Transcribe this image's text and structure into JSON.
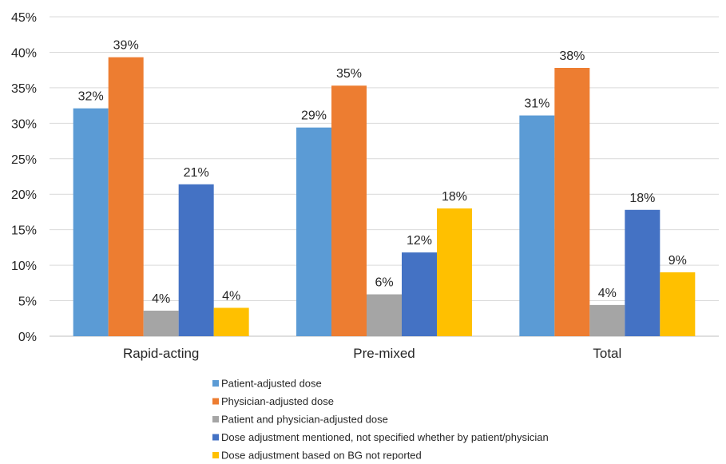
{
  "chart_data": {
    "type": "bar",
    "title": "",
    "xlabel": "",
    "ylabel": "",
    "categories": [
      "Rapid-acting",
      "Pre-mixed",
      "Total"
    ],
    "ylim": [
      0,
      45
    ],
    "yticks": [
      0,
      5,
      10,
      15,
      20,
      25,
      30,
      35,
      40,
      45
    ],
    "y_tick_suffix": "%",
    "grid": true,
    "legend_position": "bottom",
    "series": [
      {
        "name": "Patient-adjusted dose",
        "color": "#5B9BD5",
        "values": [
          32.1,
          29.4,
          31.1
        ],
        "labels": [
          "32%",
          "29%",
          "31%"
        ]
      },
      {
        "name": "Physician-adjusted dose",
        "color": "#ED7D31",
        "values": [
          39.3,
          35.3,
          37.8
        ],
        "labels": [
          "39%",
          "35%",
          "38%"
        ]
      },
      {
        "name": "Patient and physician-adjusted dose",
        "color": "#A5A5A5",
        "values": [
          3.6,
          5.9,
          4.4
        ],
        "labels": [
          "4%",
          "6%",
          "4%"
        ]
      },
      {
        "name": "Dose adjustment mentioned, not specified whether by patient/physician",
        "color": "#4472C4",
        "values": [
          21.4,
          11.8,
          17.8
        ],
        "labels": [
          "21%",
          "12%",
          "18%"
        ]
      },
      {
        "name": "Dose adjustment based on BG not reported",
        "color": "#FFC000",
        "values": [
          4.0,
          18.0,
          9.0
        ],
        "labels": [
          "4%",
          "18%",
          "9%"
        ]
      }
    ]
  }
}
